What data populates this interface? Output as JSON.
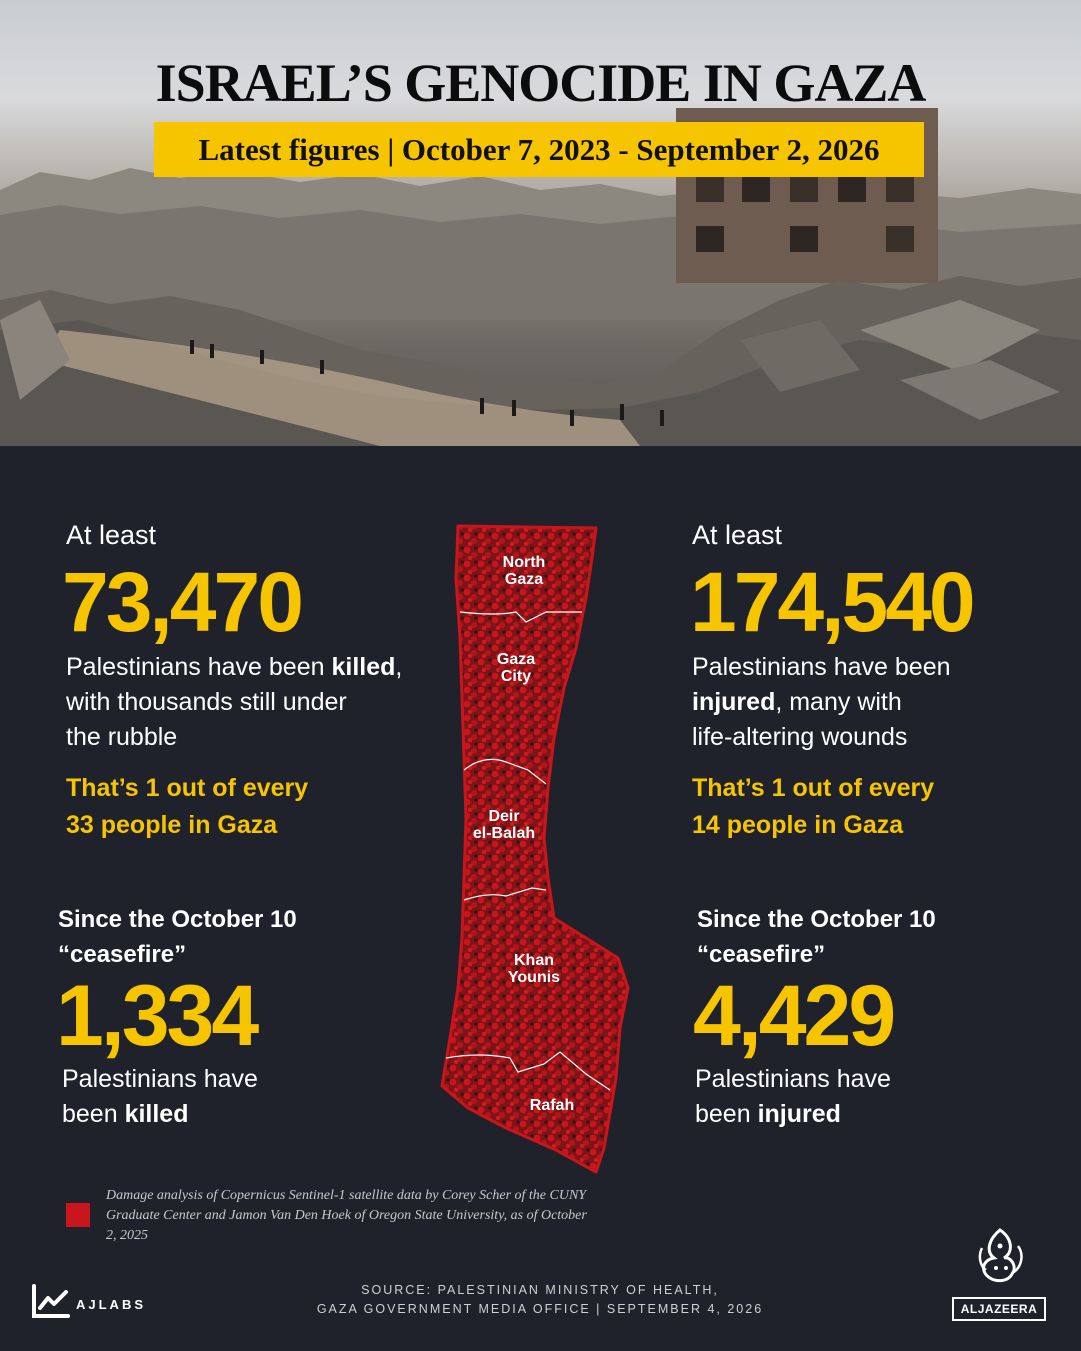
{
  "header": {
    "title": "ISRAEL’S GENOCIDE IN GAZA",
    "subtitle": "Latest figures | October 7, 2023 - September 2, 2026"
  },
  "left": {
    "lead": "At least",
    "killed_total": "73,470",
    "desc_1": "Palestinians have been ",
    "desc_bold": "killed",
    "desc_2": ",",
    "desc_line2": "with thousands still under",
    "desc_line3": "the rubble",
    "ratio_line1": "That’s 1 out of every",
    "ratio_line2": "33 people in Gaza",
    "since_line1": "Since the October 10",
    "since_line2": "“ceasefire”",
    "since_value": "1,334",
    "since_desc1": "Palestinians have",
    "since_desc2_pre": "been ",
    "since_desc2_bold": "killed"
  },
  "right": {
    "lead": "At least",
    "injured_total": "174,540",
    "desc_line1": "Palestinians have been",
    "desc_bold": "injured",
    "desc_line2_rest": ", many with",
    "desc_line3": "life-altering wounds",
    "ratio_line1": "That’s 1 out of every",
    "ratio_line2": "14 people in Gaza",
    "since_line1": "Since the October 10",
    "since_line2": "“ceasefire”",
    "since_value": "4,429",
    "since_desc1": "Palestinians have",
    "since_desc2_pre": "been ",
    "since_desc2_bold": "injured"
  },
  "map": {
    "regions": [
      {
        "line1": "North",
        "line2": "Gaza"
      },
      {
        "line1": "Gaza",
        "line2": "City"
      },
      {
        "line1": "Deir",
        "line2": "el-Balah"
      },
      {
        "line1": "Khan",
        "line2": "Younis"
      },
      {
        "line1": "Rafah",
        "line2": ""
      }
    ],
    "damage_color": "#c9151c",
    "outline_color": "#c9151c"
  },
  "legend": {
    "text": "Damage analysis of Copernicus Sentinel-1 satellite data by  Corey Scher of the CUNY Graduate Center and Jamon Van Den Hoek of Oregon State University, as of  October 2, 2025"
  },
  "footer": {
    "source_line1": "SOURCE:  PALESTINIAN MINISTRY OF HEALTH,",
    "source_line2": "GAZA GOVERNMENT MEDIA OFFICE   |   SEPTEMBER 4, 2026",
    "brand_left": "AJLABS",
    "brand_right": "ALJAZEERA"
  },
  "colors": {
    "accent": "#f7c500",
    "background": "#1f222a",
    "damage": "#c9151c"
  },
  "icons": [
    "ajlabs-logo-icon",
    "aljazeera-calligraphy-icon"
  ]
}
